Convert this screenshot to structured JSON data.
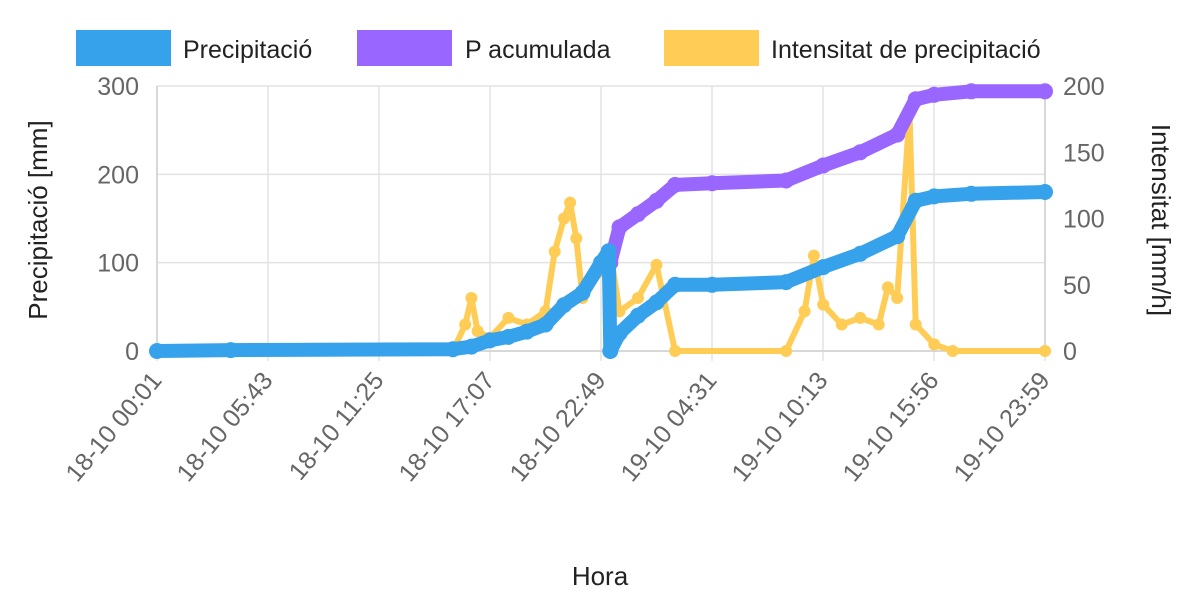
{
  "chart_data": {
    "type": "line",
    "xlabel": "Hora",
    "ylabel_left": "Precipitació [mm]",
    "ylabel_right": "Intensitat [mm/h]",
    "legend_position": "top",
    "grid": true,
    "x_range": [
      "18-10 00:01",
      "19-10 23:59"
    ],
    "x_ticks": [
      "18-10 00:01",
      "18-10 05:43",
      "18-10 11:25",
      "18-10 17:07",
      "18-10 22:49",
      "19-10 04:31",
      "19-10 10:13",
      "19-10 15:56",
      "19-10 23:59"
    ],
    "y_left": {
      "min": 0,
      "max": 300,
      "ticks": [
        "0",
        "100",
        "200",
        "300"
      ]
    },
    "y_right": {
      "min": 0,
      "max": 200,
      "ticks": [
        "0",
        "50",
        "100",
        "150",
        "200"
      ]
    },
    "series": [
      {
        "name": "Precipitació",
        "color": "#36A2EB",
        "axis": "left",
        "points": [
          [
            "18-10 00:01",
            0
          ],
          [
            "18-10 04:00",
            1
          ],
          [
            "18-10 16:00",
            2
          ],
          [
            "18-10 17:00",
            5
          ],
          [
            "18-10 18:00",
            12
          ],
          [
            "18-10 19:00",
            16
          ],
          [
            "18-10 20:00",
            22
          ],
          [
            "18-10 21:00",
            30
          ],
          [
            "18-10 22:00",
            52
          ],
          [
            "18-10 23:00",
            66
          ],
          [
            "19-10 00:00",
            100
          ],
          [
            "19-10 00:25",
            113
          ],
          [
            "19-10 00:30",
            0
          ],
          [
            "19-10 01:00",
            20
          ],
          [
            "19-10 02:00",
            40
          ],
          [
            "19-10 03:00",
            55
          ],
          [
            "19-10 04:00",
            75
          ],
          [
            "19-10 06:00",
            75
          ],
          [
            "19-10 10:00",
            78
          ],
          [
            "19-10 12:00",
            95
          ],
          [
            "19-10 14:00",
            110
          ],
          [
            "19-10 16:00",
            130
          ],
          [
            "19-10 17:00",
            170
          ],
          [
            "19-10 18:00",
            175
          ],
          [
            "19-10 20:00",
            178
          ],
          [
            "19-10 23:59",
            180
          ]
        ]
      },
      {
        "name": "P acumulada",
        "color": "#9966FF",
        "axis": "left",
        "points": [
          [
            "19-10 00:30",
            100
          ],
          [
            "19-10 01:00",
            140
          ],
          [
            "19-10 02:00",
            155
          ],
          [
            "19-10 03:00",
            170
          ],
          [
            "19-10 04:00",
            188
          ],
          [
            "19-10 06:00",
            190
          ],
          [
            "19-10 10:00",
            193
          ],
          [
            "19-10 12:00",
            210
          ],
          [
            "19-10 14:00",
            225
          ],
          [
            "19-10 16:00",
            245
          ],
          [
            "19-10 17:00",
            285
          ],
          [
            "19-10 18:00",
            290
          ],
          [
            "19-10 20:00",
            294
          ],
          [
            "19-10 23:59",
            294
          ]
        ]
      },
      {
        "name": "Intensitat de precipitació",
        "color": "#FFCD56",
        "axis": "right",
        "points": [
          [
            "18-10 00:01",
            0
          ],
          [
            "18-10 16:00",
            0
          ],
          [
            "18-10 16:40",
            20
          ],
          [
            "18-10 17:00",
            40
          ],
          [
            "18-10 17:20",
            15
          ],
          [
            "18-10 18:00",
            10
          ],
          [
            "18-10 19:00",
            25
          ],
          [
            "18-10 20:00",
            20
          ],
          [
            "18-10 21:00",
            30
          ],
          [
            "18-10 21:30",
            75
          ],
          [
            "18-10 22:00",
            100
          ],
          [
            "18-10 22:20",
            112
          ],
          [
            "18-10 22:40",
            85
          ],
          [
            "18-10 23:00",
            40
          ],
          [
            "19-10 00:00",
            60
          ],
          [
            "19-10 00:30",
            75
          ],
          [
            "19-10 01:00",
            30
          ],
          [
            "19-10 02:00",
            40
          ],
          [
            "19-10 03:00",
            65
          ],
          [
            "19-10 04:00",
            0
          ],
          [
            "19-10 10:00",
            0
          ],
          [
            "19-10 11:00",
            30
          ],
          [
            "19-10 11:30",
            72
          ],
          [
            "19-10 12:00",
            35
          ],
          [
            "19-10 13:00",
            20
          ],
          [
            "19-10 14:00",
            25
          ],
          [
            "19-10 15:00",
            20
          ],
          [
            "19-10 15:30",
            48
          ],
          [
            "19-10 16:00",
            40
          ],
          [
            "19-10 16:40",
            180
          ],
          [
            "19-10 17:00",
            20
          ],
          [
            "19-10 18:00",
            5
          ],
          [
            "19-10 19:00",
            0
          ],
          [
            "19-10 23:59",
            0
          ]
        ]
      }
    ]
  }
}
